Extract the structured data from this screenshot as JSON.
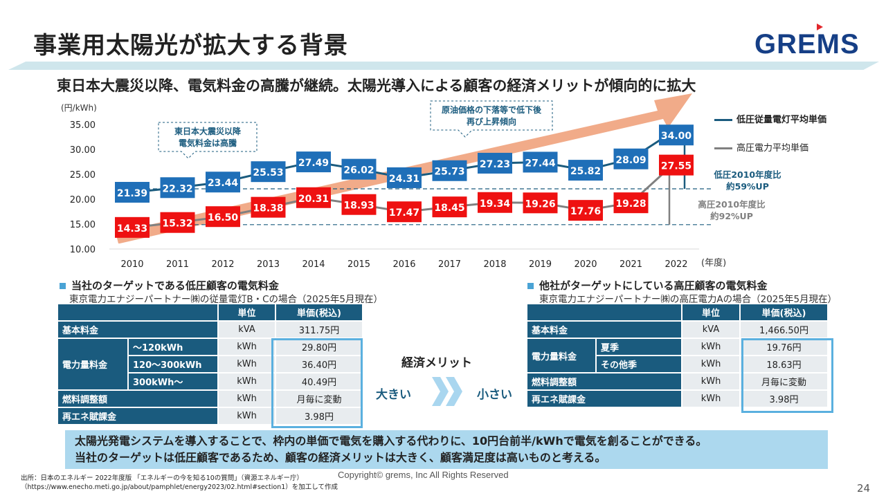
{
  "page": {
    "title": "事業用太陽光が拡大する背景",
    "logo": "GREMS",
    "subtitle": "東日本大震災以降、電気料金の高騰が継続。太陽光導入による顧客の経済メリットが傾向的に拡大",
    "page_number": "24",
    "copyright": "Copyright© grems, Inc All Rights Reserved",
    "source_line1": "出所：日本のエネルギー 2022年度版 「エネルギーの今を知る10の質問」（資源エネルギー庁）",
    "source_line2": "（https://www.enecho.meti.go.jp/about/pamphlet/energy2023/02.html#section1）を加工して作成"
  },
  "chart_data": {
    "type": "line",
    "title": "",
    "ylabel": "(円/kWh)",
    "xlabel": "(年度)",
    "ylim": [
      10,
      35
    ],
    "yticks": [
      "10.00",
      "15.00",
      "20.00",
      "25.00",
      "30.00",
      "35.00"
    ],
    "x": [
      "2010",
      "2011",
      "2012",
      "2013",
      "2014",
      "2015",
      "2016",
      "2017",
      "2018",
      "2019",
      "2020",
      "2021",
      "2022"
    ],
    "series": [
      {
        "name": "低圧従量電灯平均単価",
        "color": "#1f6fb8",
        "line_color": "#1a5b7e",
        "values": [
          21.39,
          22.32,
          23.44,
          25.53,
          27.49,
          26.02,
          24.31,
          25.73,
          27.23,
          27.44,
          25.82,
          28.09,
          34.0
        ]
      },
      {
        "name": "高圧電力平均単価",
        "color": "#ee1111",
        "line_color": "#808080",
        "values": [
          14.33,
          15.32,
          16.5,
          18.38,
          20.31,
          18.93,
          17.47,
          18.45,
          19.34,
          19.26,
          17.76,
          19.28,
          27.55
        ]
      }
    ],
    "annotations": {
      "callout1": [
        "東日本大震災以降",
        "電気料金は高騰"
      ],
      "callout2": [
        "原油価格の下落等で低下後",
        "再び上昇傾向"
      ],
      "low_up": [
        "低圧2010年度比",
        "約59%UP"
      ],
      "high_up": [
        "高圧2010年度比",
        "約92%UP"
      ]
    },
    "legend": "right",
    "trend_arrow_color": "#f0a27c"
  },
  "left_table": {
    "heading": "当社のターゲットである低圧顧客の電気料金",
    "sub": "東京電力エナジーパートナー㈱の従量電灯B・Cの場合（2025年5月現在）",
    "col_unit": "単位",
    "col_price": "単価(税込)",
    "rows": [
      {
        "label": "基本料金",
        "unit": "kVA",
        "price": "311.75円"
      },
      {
        "group": "電力量料金",
        "label": "～120kWh",
        "unit": "kWh",
        "price": "29.80円"
      },
      {
        "label": "120～300kWh",
        "unit": "kWh",
        "price": "36.40円"
      },
      {
        "label": "300kWh～",
        "unit": "kWh",
        "price": "40.49円"
      },
      {
        "label": "燃料調整額",
        "unit": "kWh",
        "price": "月毎に変動"
      },
      {
        "label": "再エネ賦課金",
        "unit": "kWh",
        "price": "3.98円"
      }
    ]
  },
  "right_table": {
    "heading": "他社がターゲットにしている高圧顧客の電気料金",
    "sub": "東京電力エナジーパートナー㈱の高圧電力Aの場合（2025年5月現在）",
    "col_unit": "単位",
    "col_price": "単価(税込)",
    "rows": [
      {
        "label": "基本料金",
        "unit": "kVA",
        "price": "1,466.50円"
      },
      {
        "group": "電力量料金",
        "label": "夏季",
        "unit": "kWh",
        "price": "19.76円"
      },
      {
        "label": "その他季",
        "unit": "kWh",
        "price": "18.63円"
      },
      {
        "label": "燃料調整額",
        "unit": "kWh",
        "price": "月毎に変動"
      },
      {
        "label": "再エネ賦課金",
        "unit": "kWh",
        "price": "3.98円"
      }
    ]
  },
  "merit": {
    "title": "経済メリット",
    "big": "大きい",
    "small": "小さい"
  },
  "conclusion": {
    "line1": "太陽光発電システムを導入することで、枠内の単価で電気を購入する代わりに、10円台前半/kWhで電気を創ることができる。",
    "line2": "当社のターゲットは低圧顧客であるため、顧客の経済メリットは大きく、顧客満足度は高いものと考える。"
  }
}
